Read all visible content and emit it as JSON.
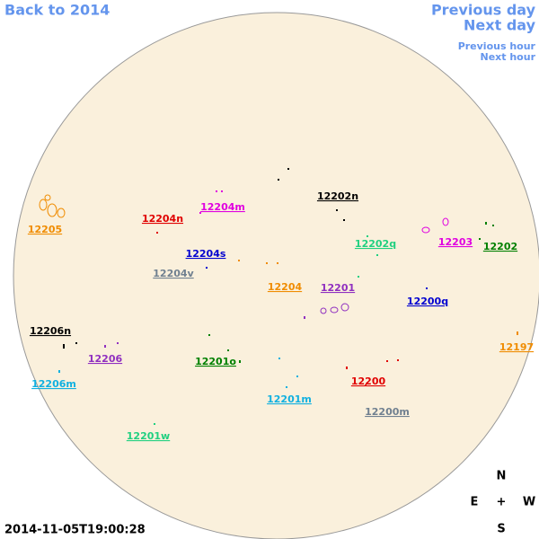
{
  "navigation": {
    "back": "Back to 2014",
    "previous_day": "Previous day",
    "next_day": "Next day",
    "previous_hour": "Previous hour",
    "next_hour": "Next hour"
  },
  "regions": [
    {
      "label": "12205",
      "color": "#f08c00"
    },
    {
      "label": "12204n",
      "color": "#e00000"
    },
    {
      "label": "12204m",
      "color": "#e000e0"
    },
    {
      "label": "12202n",
      "color": "#000000"
    },
    {
      "label": "12202q",
      "color": "#20d080"
    },
    {
      "label": "12203",
      "color": "#e000e0"
    },
    {
      "label": "12202",
      "color": "#008000"
    },
    {
      "label": "12204s",
      "color": "#0000d0"
    },
    {
      "label": "12204v",
      "color": "#708090"
    },
    {
      "label": "12204",
      "color": "#f08c00"
    },
    {
      "label": "12201",
      "color": "#9030c0"
    },
    {
      "label": "12200q",
      "color": "#0000d0"
    },
    {
      "label": "12206n",
      "color": "#000000"
    },
    {
      "label": "12206",
      "color": "#9030c0"
    },
    {
      "label": "12201o",
      "color": "#008000"
    },
    {
      "label": "12197",
      "color": "#f08c00"
    },
    {
      "label": "12206m",
      "color": "#10b0e0"
    },
    {
      "label": "12200",
      "color": "#e00000"
    },
    {
      "label": "12201m",
      "color": "#10b0e0"
    },
    {
      "label": "12200m",
      "color": "#708090"
    },
    {
      "label": "12201w",
      "color": "#20d080"
    }
  ],
  "compass": {
    "north": "N",
    "east": "E",
    "center": "+",
    "west": "W",
    "south": "S"
  },
  "timestamp": "2014-11-05T19:00:28"
}
